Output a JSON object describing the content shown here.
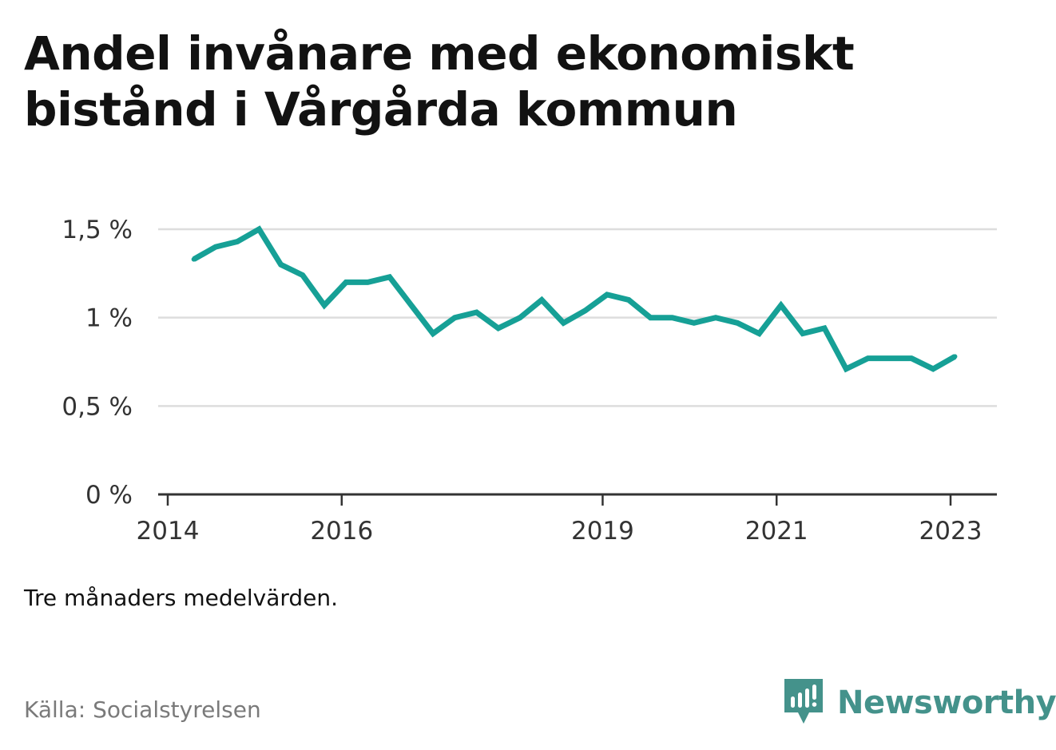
{
  "title": "Andel invånare med ekonomiskt bistånd i Vårgårda kommun",
  "note": "Tre månaders medelvärden.",
  "source": "Källa: Socialstyrelsen",
  "brand": {
    "name": "Newsworthy",
    "icon": "newsworthy-logo-icon",
    "color": "#44928b"
  },
  "chart_data": {
    "type": "line",
    "title": "Andel invånare med ekonomiskt bistånd i Vårgårda kommun",
    "xlabel": "",
    "ylabel": "",
    "ylim": [
      0,
      1.5
    ],
    "xlim": [
      2014,
      2023.5
    ],
    "grid": true,
    "line_color": "#16a096",
    "y_ticks": [
      {
        "value": 0,
        "label": "0 %"
      },
      {
        "value": 0.5,
        "label": "0,5 %"
      },
      {
        "value": 1,
        "label": "1 %"
      },
      {
        "value": 1.5,
        "label": "1,5 %"
      }
    ],
    "x_ticks": [
      {
        "value": 2014,
        "label": "2014"
      },
      {
        "value": 2016,
        "label": "2016"
      },
      {
        "value": 2019,
        "label": "2019"
      },
      {
        "value": 2021,
        "label": "2021"
      },
      {
        "value": 2023,
        "label": "2023"
      }
    ],
    "series": [
      {
        "name": "Andel invånare med ekonomiskt bistånd",
        "x": [
          2014.3,
          2014.55,
          2014.8,
          2015.05,
          2015.3,
          2015.55,
          2015.8,
          2016.05,
          2016.3,
          2016.55,
          2016.8,
          2017.05,
          2017.3,
          2017.55,
          2017.8,
          2018.05,
          2018.3,
          2018.55,
          2018.8,
          2019.05,
          2019.3,
          2019.55,
          2019.8,
          2020.05,
          2020.3,
          2020.55,
          2020.8,
          2021.05,
          2021.3,
          2021.55,
          2021.8,
          2022.05,
          2022.3,
          2022.55,
          2022.8,
          2023.05
        ],
        "values": [
          1.33,
          1.4,
          1.43,
          1.5,
          1.3,
          1.24,
          1.07,
          1.2,
          1.2,
          1.23,
          1.07,
          0.91,
          1.0,
          1.03,
          0.94,
          1.0,
          1.1,
          0.97,
          1.04,
          1.13,
          1.1,
          1.0,
          1.0,
          0.97,
          1.0,
          0.97,
          0.91,
          1.07,
          0.91,
          0.94,
          0.71,
          0.77,
          0.77,
          0.77,
          0.71,
          0.78
        ]
      }
    ]
  }
}
